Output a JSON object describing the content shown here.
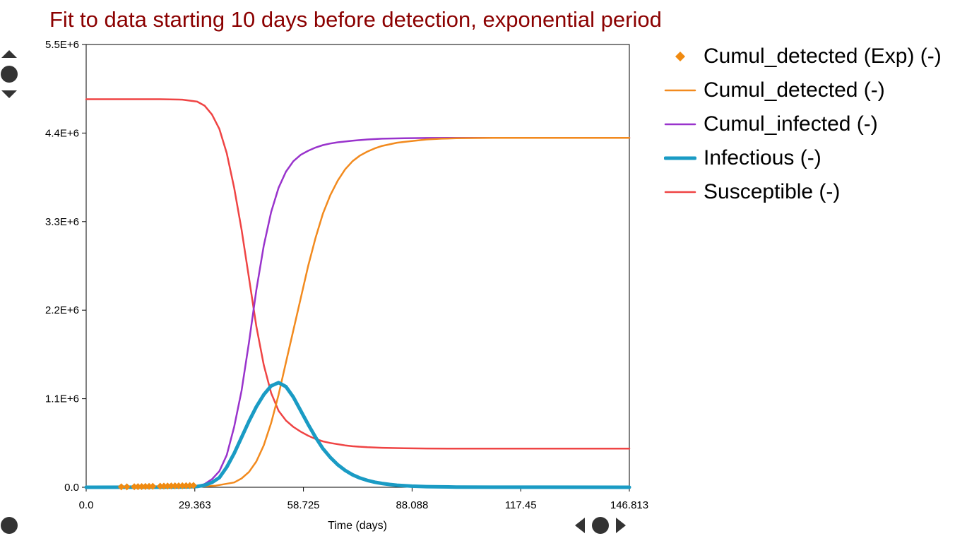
{
  "chart_data": {
    "type": "line",
    "title": "Fit to data starting 10 days before detection, exponential period",
    "xlabel": "Time (days)",
    "ylabel": "",
    "xlim": [
      0,
      146.813
    ],
    "ylim": [
      0,
      5500000
    ],
    "x_ticks": [
      "0.0",
      "29.363",
      "58.725",
      "88.088",
      "117.45",
      "146.813"
    ],
    "y_ticks": [
      "0.0",
      "1.1E+6",
      "2.2E+6",
      "3.3E+6",
      "4.4E+6",
      "5.5E+6"
    ],
    "grid": false,
    "legend_position": "right",
    "series": [
      {
        "name": "Cumul_detected (Exp) (-)",
        "style": "markers",
        "color": "#f08a10",
        "x": [
          9.5,
          11,
          13,
          14,
          15,
          16,
          17,
          18,
          20,
          21,
          22,
          23,
          24,
          25,
          26,
          27,
          28,
          29
        ],
        "y": [
          5000,
          6000,
          7000,
          8000,
          9000,
          10000,
          11000,
          12000,
          13000,
          14000,
          15000,
          16000,
          17000,
          18000,
          19000,
          20000,
          21000,
          22000
        ]
      },
      {
        "name": "Cumul_detected (-)",
        "style": "line",
        "color": "#f28a1e",
        "x": [
          0,
          10,
          20,
          30,
          35,
          40,
          42,
          44,
          46,
          48,
          50,
          52,
          54,
          56,
          58,
          60,
          62,
          64,
          66,
          68,
          70,
          72,
          74,
          76,
          78,
          80,
          82,
          84,
          86,
          88,
          92,
          96,
          100,
          105,
          110,
          120,
          130,
          146.813
        ],
        "y": [
          0,
          0,
          1000,
          5000,
          20000,
          60000,
          110000,
          190000,
          320000,
          520000,
          800000,
          1150000,
          1550000,
          1950000,
          2350000,
          2750000,
          3100000,
          3400000,
          3630000,
          3810000,
          3950000,
          4050000,
          4120000,
          4170000,
          4210000,
          4240000,
          4260000,
          4280000,
          4290000,
          4300000,
          4320000,
          4330000,
          4335000,
          4338000,
          4340000,
          4340000,
          4340000,
          4340000
        ]
      },
      {
        "name": "Cumul_infected (-)",
        "style": "line",
        "color": "#9933cc",
        "x": [
          0,
          20,
          28,
          30,
          32,
          34,
          36,
          38,
          40,
          42,
          44,
          46,
          48,
          50,
          52,
          54,
          56,
          58,
          60,
          62,
          64,
          66,
          68,
          70,
          72,
          76,
          80,
          86,
          92,
          100,
          110,
          146.813
        ],
        "y": [
          0,
          2000,
          8000,
          15000,
          40000,
          100000,
          200000,
          400000,
          750000,
          1200000,
          1800000,
          2450000,
          3000000,
          3420000,
          3720000,
          3920000,
          4050000,
          4130000,
          4180000,
          4220000,
          4250000,
          4270000,
          4285000,
          4295000,
          4305000,
          4320000,
          4330000,
          4336000,
          4339000,
          4340000,
          4340000,
          4340000
        ]
      },
      {
        "name": "Infectious (-)",
        "style": "line-thick",
        "color": "#1a9bc4",
        "x": [
          0,
          20,
          28,
          30,
          32,
          34,
          36,
          38,
          40,
          42,
          44,
          46,
          48,
          50,
          52,
          54,
          56,
          58,
          60,
          62,
          64,
          66,
          68,
          70,
          72,
          74,
          76,
          78,
          80,
          82,
          84,
          88,
          92,
          96,
          100,
          110,
          120,
          146.813
        ],
        "y": [
          0,
          1000,
          5000,
          10000,
          25000,
          60000,
          120000,
          250000,
          420000,
          620000,
          820000,
          1000000,
          1150000,
          1260000,
          1300000,
          1250000,
          1120000,
          950000,
          780000,
          620000,
          480000,
          370000,
          280000,
          210000,
          155000,
          115000,
          85000,
          63000,
          47000,
          35000,
          25000,
          14000,
          8000,
          5000,
          3000,
          1000,
          500,
          0
        ]
      },
      {
        "name": "Susceptible (-)",
        "style": "line",
        "color": "#ef4444",
        "x": [
          0,
          20,
          26,
          30,
          32,
          34,
          36,
          38,
          40,
          42,
          44,
          46,
          48,
          50,
          52,
          54,
          56,
          58,
          60,
          62,
          64,
          66,
          68,
          70,
          72,
          76,
          80,
          86,
          92,
          100,
          110,
          146.813
        ],
        "y": [
          4820000,
          4820000,
          4815000,
          4790000,
          4740000,
          4630000,
          4450000,
          4150000,
          3720000,
          3200000,
          2600000,
          2000000,
          1520000,
          1170000,
          950000,
          830000,
          750000,
          690000,
          640000,
          600000,
          570000,
          550000,
          535000,
          520000,
          510000,
          497000,
          490000,
          485000,
          482000,
          480000,
          480000,
          480000
        ]
      }
    ]
  },
  "controls": {
    "color": "#333333"
  }
}
